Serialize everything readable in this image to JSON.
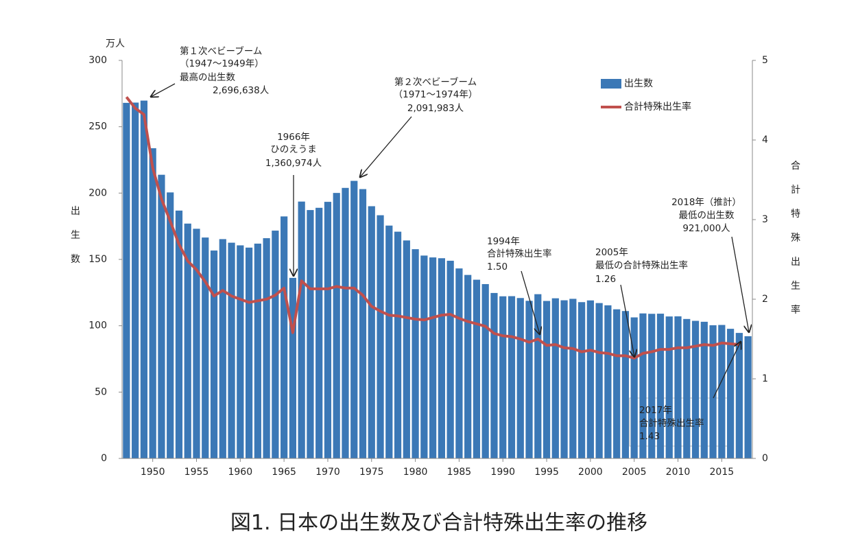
{
  "chart_data": {
    "type": "bar-line",
    "title": "図1. 日本の出生数及び合計特殊出生率の推移",
    "y_unit": "万人",
    "y_label": "出生数",
    "y2_label": "合計特殊出生率",
    "x": [
      1947,
      1948,
      1949,
      1950,
      1951,
      1952,
      1953,
      1954,
      1955,
      1956,
      1957,
      1958,
      1959,
      1960,
      1961,
      1962,
      1963,
      1964,
      1965,
      1966,
      1967,
      1968,
      1969,
      1970,
      1971,
      1972,
      1973,
      1974,
      1975,
      1976,
      1977,
      1978,
      1979,
      1980,
      1981,
      1982,
      1983,
      1984,
      1985,
      1986,
      1987,
      1988,
      1989,
      1990,
      1991,
      1992,
      1993,
      1994,
      1995,
      1996,
      1997,
      1998,
      1999,
      2000,
      2001,
      2002,
      2003,
      2004,
      2005,
      2006,
      2007,
      2008,
      2009,
      2010,
      2011,
      2012,
      2013,
      2014,
      2015,
      2016,
      2017,
      2018
    ],
    "xlim": [
      1946.5,
      2018.5
    ],
    "xticks": [
      1950,
      1955,
      1960,
      1965,
      1970,
      1975,
      1980,
      1985,
      1990,
      1995,
      2000,
      2005,
      2010,
      2015
    ],
    "ylim": [
      0,
      300
    ],
    "yticks": [
      0,
      50,
      100,
      150,
      200,
      250,
      300
    ],
    "y2lim": [
      0,
      5
    ],
    "y2ticks": [
      0,
      1,
      2,
      3,
      4,
      5
    ],
    "legend": "upper right",
    "series": [
      {
        "name": "出生数",
        "color": "#3b78b6",
        "values": [
          268.0,
          268.2,
          269.7,
          233.8,
          213.8,
          200.5,
          186.8,
          177.0,
          173.1,
          166.5,
          156.7,
          165.3,
          162.6,
          160.6,
          158.9,
          161.9,
          166.0,
          171.7,
          182.4,
          136.1,
          193.6,
          187.2,
          188.9,
          193.4,
          200.1,
          203.9,
          209.2,
          203.0,
          190.1,
          183.3,
          175.5,
          170.9,
          164.3,
          157.7,
          152.9,
          151.5,
          150.9,
          149.0,
          143.2,
          138.3,
          134.7,
          131.4,
          124.7,
          122.2,
          122.3,
          120.9,
          118.8,
          123.8,
          118.7,
          120.7,
          119.2,
          120.3,
          117.8,
          119.1,
          117.1,
          115.4,
          112.4,
          111.1,
          106.3,
          109.3,
          109.0,
          109.1,
          107.0,
          107.1,
          105.1,
          103.7,
          103.0,
          100.4,
          100.6,
          97.7,
          94.6,
          92.1
        ]
      },
      {
        "name": "合計特殊出生率",
        "color": "#c0504d",
        "axis": "y2",
        "values": [
          4.54,
          4.4,
          4.32,
          3.65,
          3.26,
          2.98,
          2.69,
          2.48,
          2.37,
          2.22,
          2.04,
          2.11,
          2.04,
          2.0,
          1.96,
          1.98,
          2.0,
          2.05,
          2.14,
          1.58,
          2.23,
          2.13,
          2.13,
          2.13,
          2.16,
          2.14,
          2.14,
          2.05,
          1.91,
          1.85,
          1.8,
          1.79,
          1.77,
          1.75,
          1.74,
          1.77,
          1.8,
          1.81,
          1.76,
          1.72,
          1.69,
          1.66,
          1.57,
          1.54,
          1.53,
          1.5,
          1.46,
          1.5,
          1.42,
          1.43,
          1.39,
          1.38,
          1.34,
          1.36,
          1.33,
          1.32,
          1.29,
          1.29,
          1.26,
          1.32,
          1.34,
          1.37,
          1.37,
          1.39,
          1.39,
          1.41,
          1.43,
          1.42,
          1.45,
          1.44,
          1.43,
          null
        ]
      }
    ],
    "annotations": [
      [
        "第１次ベビーブーム",
        "（1947～1949年）",
        "最高の出生数",
        "2,696,638人"
      ],
      [
        "1966年",
        "ひのえうま",
        "1,360,974人"
      ],
      [
        "第２次ベビーブーム",
        "（1971～1974年）",
        "2,091,983人"
      ],
      [
        "1994年",
        "合計特殊出生率",
        "1.50"
      ],
      [
        "2005年",
        "最低の合計特殊出生率",
        "1.26"
      ],
      [
        "2018年（推計）",
        "最低の出生数",
        "921,000人"
      ],
      [
        "2017年",
        "合計特殊出生率",
        "1.43"
      ]
    ]
  }
}
